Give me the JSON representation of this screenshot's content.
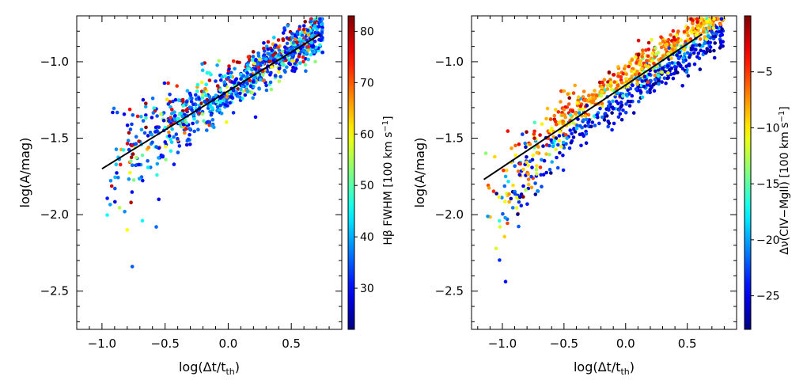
{
  "chart_data": [
    {
      "type": "scatter",
      "xlabel": "log(Δt/t",
      "xlabel_sub": "th",
      "xlabel_close": ")",
      "ylabel": "log(A/mag)",
      "xlim": [
        -1.2,
        0.9
      ],
      "ylim": [
        -2.75,
        -0.7
      ],
      "xticks": [
        -1.0,
        -0.5,
        0.0,
        0.5
      ],
      "xtick_labels": [
        "−1.0",
        "−0.5",
        "0.0",
        "0.5"
      ],
      "yticks": [
        -1.0,
        -1.5,
        -2.0,
        -2.5
      ],
      "ytick_labels": [
        "−1.0",
        "−1.5",
        "−2.0",
        "−2.5"
      ],
      "colorbar": {
        "label": "Hβ FWHM [100 km s",
        "label_sup": "−1",
        "label_close": "]",
        "range": [
          22,
          83
        ],
        "ticks": [
          30,
          40,
          50,
          60,
          70,
          80
        ],
        "tick_labels": [
          "30",
          "40",
          "50",
          "60",
          "70",
          "80"
        ]
      },
      "fit_line": {
        "x": [
          -1.0,
          0.73
        ],
        "y": [
          -1.7,
          -0.82
        ]
      },
      "points_summary": {
        "count": 900,
        "x_range": [
          -1.0,
          0.75
        ],
        "trend_slope": 0.51,
        "trend_intercept": -1.19,
        "outliers": [
          {
            "x": -0.76,
            "y": -2.34,
            "c": 35
          },
          {
            "x": -0.8,
            "y": -2.1,
            "c": 60
          },
          {
            "x": -0.82,
            "y": -1.98,
            "c": 38
          },
          {
            "x": -0.55,
            "y": -1.9,
            "c": 28
          },
          {
            "x": -0.77,
            "y": -1.92,
            "c": 80
          },
          {
            "x": -0.57,
            "y": -2.08,
            "c": 36
          },
          {
            "x": -0.68,
            "y": -2.04,
            "c": 45
          }
        ]
      }
    },
    {
      "type": "scatter",
      "xlabel": "log(Δt/t",
      "xlabel_sub": "th",
      "xlabel_close": ")",
      "ylabel": "log(A/mag)",
      "xlim": [
        -1.25,
        0.9
      ],
      "ylim": [
        -2.75,
        -0.7
      ],
      "xticks": [
        -1.0,
        -0.5,
        0.0,
        0.5
      ],
      "xtick_labels": [
        "−1.0",
        "−0.5",
        "0.0",
        "0.5"
      ],
      "yticks": [
        -1.0,
        -1.5,
        -2.0,
        -2.5
      ],
      "ytick_labels": [
        "−1.0",
        "−1.5",
        "−2.0",
        "−2.5"
      ],
      "colorbar": {
        "label": "Δν(CIV−MgII) [100 km s",
        "label_sup": "−1",
        "label_close": "]",
        "range": [
          -28,
          0
        ],
        "ticks": [
          -25,
          -20,
          -15,
          -10,
          -5
        ],
        "tick_labels": [
          "−25",
          "−20",
          "−15",
          "−10",
          "−5"
        ]
      },
      "fit_line": {
        "x": [
          -1.15,
          0.62
        ],
        "y": [
          -1.77,
          -0.82
        ]
      },
      "points_summary": {
        "count": 1000,
        "x_range": [
          -1.15,
          0.8
        ],
        "trend_slope": 0.54,
        "trend_intercept": -1.15
      }
    }
  ]
}
